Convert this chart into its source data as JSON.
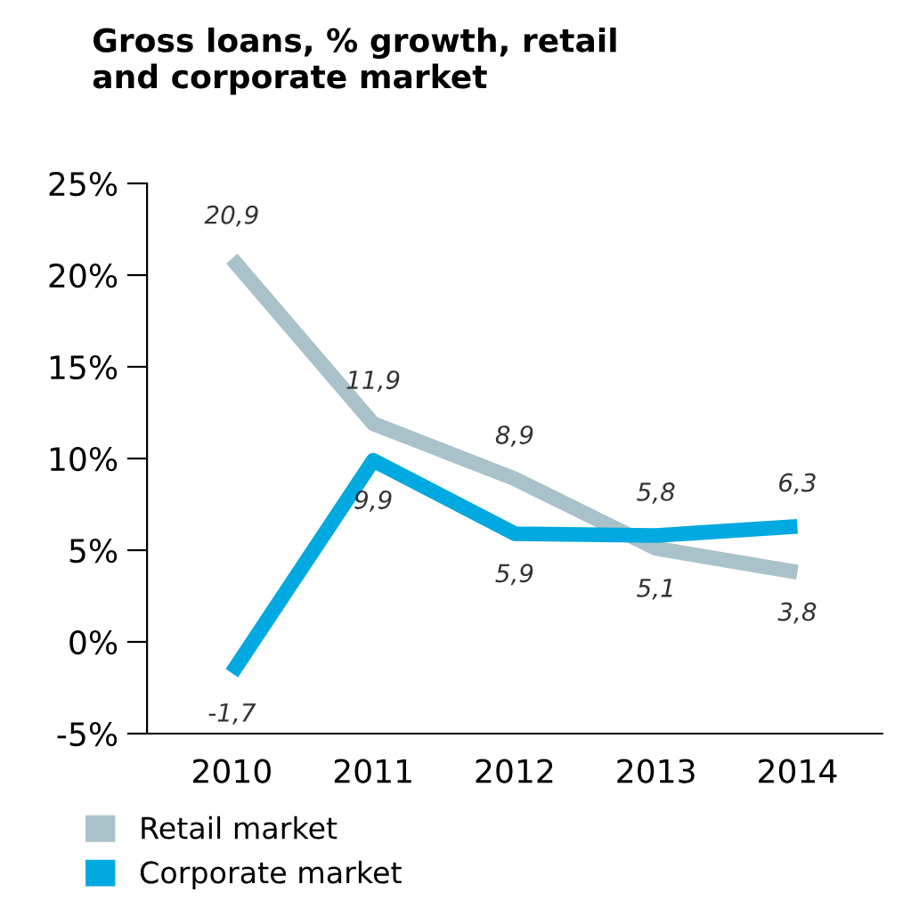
{
  "chart_data": {
    "type": "line",
    "title": "Gross loans, % growth, retail\nand corporate market",
    "categories": [
      "2010",
      "2011",
      "2012",
      "2013",
      "2014"
    ],
    "series": [
      {
        "name": "Retail market",
        "color": "#a9c2c9",
        "values": [
          20.9,
          11.9,
          8.9,
          5.1,
          3.8
        ],
        "value_labels": [
          "20,9",
          "11,9",
          "8,9",
          "5,1",
          "3,8"
        ]
      },
      {
        "name": "Corporate market",
        "color": "#00a9e0",
        "values": [
          -1.7,
          9.9,
          5.9,
          5.8,
          6.3
        ],
        "value_labels": [
          "-1,7",
          "9,9",
          "5,9",
          "5,8",
          "6,3"
        ]
      }
    ],
    "ylim": [
      -5,
      25
    ],
    "yticks": [
      {
        "value": -5,
        "label": "-5%"
      },
      {
        "value": 0,
        "label": "0%"
      },
      {
        "value": 5,
        "label": "5%"
      },
      {
        "value": 10,
        "label": "10%"
      },
      {
        "value": 15,
        "label": "15%"
      },
      {
        "value": 20,
        "label": "20%"
      },
      {
        "value": 25,
        "label": "25%"
      }
    ],
    "grid": false,
    "legend": "bottom",
    "marker": "none",
    "line_style": "solid"
  }
}
